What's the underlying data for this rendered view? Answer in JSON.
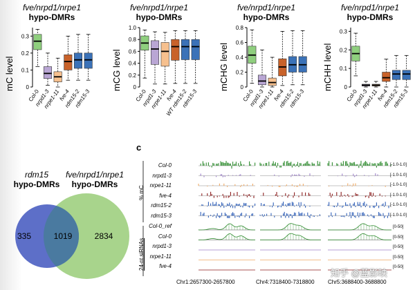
{
  "panels_b": [
    {
      "title_italic": "fve/nrpd1/nrpe1",
      "title_bold": "hypo-DMRs",
      "ylabel": "mC level",
      "yticks": [
        "0.3",
        "0.2",
        "0.1",
        "0"
      ],
      "ylim": [
        0,
        0.35
      ],
      "labels": [
        "Col-0",
        "nrpd1-3",
        "nrpe1-11",
        "fve-4",
        "rdm15-2",
        "rdm15-3"
      ],
      "box": [
        {
          "med": 0.27,
          "q1": 0.22,
          "q3": 0.31,
          "lo": 0.12,
          "hi": 0.34
        },
        {
          "med": 0.08,
          "q1": 0.05,
          "q3": 0.12,
          "lo": 0.01,
          "hi": 0.2
        },
        {
          "med": 0.06,
          "q1": 0.03,
          "q3": 0.09,
          "lo": 0.0,
          "hi": 0.17
        },
        {
          "med": 0.15,
          "q1": 0.1,
          "q3": 0.19,
          "lo": 0.04,
          "hi": 0.3
        },
        {
          "med": 0.16,
          "q1": 0.11,
          "q3": 0.2,
          "lo": 0.04,
          "hi": 0.31
        },
        {
          "med": 0.16,
          "q1": 0.11,
          "q3": 0.2,
          "lo": 0.04,
          "hi": 0.31
        }
      ]
    },
    {
      "title_italic": "fve/nrpd1/nrpe1",
      "title_bold": "hypo-DMRs",
      "ylabel": "mCG level",
      "yticks": [
        "1.0",
        "0.8",
        "0.6",
        "0.4",
        "0.2",
        "0"
      ],
      "ylim": [
        0,
        1.0
      ],
      "labels": [
        "Col-0",
        "nrpd1-3",
        "nrpe1-11",
        "fve-4",
        "WT rdm15-2",
        "rdm15-3"
      ],
      "box": [
        {
          "med": 0.74,
          "q1": 0.62,
          "q3": 0.86,
          "lo": 0.15,
          "hi": 0.96
        },
        {
          "med": 0.64,
          "q1": 0.38,
          "q3": 0.78,
          "lo": 0.05,
          "hi": 0.93
        },
        {
          "med": 0.6,
          "q1": 0.35,
          "q3": 0.75,
          "lo": 0.05,
          "hi": 0.92
        },
        {
          "med": 0.68,
          "q1": 0.45,
          "q3": 0.8,
          "lo": 0.06,
          "hi": 0.95
        },
        {
          "med": 0.68,
          "q1": 0.46,
          "q3": 0.8,
          "lo": 0.06,
          "hi": 0.95
        },
        {
          "med": 0.68,
          "q1": 0.46,
          "q3": 0.8,
          "lo": 0.06,
          "hi": 0.95
        }
      ]
    },
    {
      "title_italic": "fve/nrpd1/nrpe1",
      "title_bold": "hypo-DMRs",
      "ylabel": "mCHG level",
      "yticks": [
        "0.8",
        "0.6",
        "0.4",
        "0.2",
        "0"
      ],
      "ylim": [
        0,
        0.8
      ],
      "labels": [
        "Col-0",
        "nrpd1-3",
        "nrpe1-11",
        "fve-4",
        "rdm15-2",
        "rdm15-3"
      ],
      "box": [
        {
          "med": 0.43,
          "q1": 0.32,
          "q3": 0.55,
          "lo": 0.05,
          "hi": 0.77
        },
        {
          "med": 0.08,
          "q1": 0.03,
          "q3": 0.16,
          "lo": 0.0,
          "hi": 0.5
        },
        {
          "med": 0.06,
          "q1": 0.02,
          "q3": 0.12,
          "lo": 0.0,
          "hi": 0.4
        },
        {
          "med": 0.27,
          "q1": 0.15,
          "q3": 0.38,
          "lo": 0.02,
          "hi": 0.75
        },
        {
          "med": 0.3,
          "q1": 0.2,
          "q3": 0.41,
          "lo": 0.03,
          "hi": 0.76
        },
        {
          "med": 0.3,
          "q1": 0.2,
          "q3": 0.41,
          "lo": 0.03,
          "hi": 0.76
        }
      ]
    },
    {
      "title_italic": "fve/nrpd1/nrpe1",
      "title_bold": "hypo-DMRs",
      "ylabel": "mCHH level",
      "yticks": [
        "0.3",
        "0.2",
        "0.1",
        "0"
      ],
      "ylim": [
        0,
        0.32
      ],
      "labels": [
        "Col-0",
        "nrpd1-3",
        "nrpe1-11",
        "fve-4",
        "rdm15-2",
        "rdm15-3"
      ],
      "box": [
        {
          "med": 0.18,
          "q1": 0.14,
          "q3": 0.22,
          "lo": 0.06,
          "hi": 0.29
        },
        {
          "med": 0.01,
          "q1": 0.005,
          "q3": 0.015,
          "lo": 0.0,
          "hi": 0.03
        },
        {
          "med": 0.01,
          "q1": 0.005,
          "q3": 0.015,
          "lo": 0.0,
          "hi": 0.03
        },
        {
          "med": 0.05,
          "q1": 0.03,
          "q3": 0.08,
          "lo": 0.0,
          "hi": 0.15
        },
        {
          "med": 0.07,
          "q1": 0.04,
          "q3": 0.09,
          "lo": 0.0,
          "hi": 0.17
        },
        {
          "med": 0.07,
          "q1": 0.04,
          "q3": 0.09,
          "lo": 0.0,
          "hi": 0.17
        }
      ]
    }
  ],
  "box_colors": [
    "#8fcf7e",
    "#b9a6d4",
    "#f6c08e",
    "#c8622a",
    "#3b72b8",
    "#3b72b8"
  ],
  "venn": {
    "title_left_italic": "rdm15",
    "title_left_bold": "hypo-DMRs",
    "title_right_italic": "fve/nrpd1/nrpe1",
    "title_right_bold": "hypo-DMRs",
    "left_only": "335",
    "overlap": "1019",
    "right_only": "2834",
    "left_color": "#5d6fc8",
    "right_color": "#a8d48c",
    "overlap_color": "#4a7aa0"
  },
  "browser": {
    "panel_label": "c",
    "group_mc_label": "% mC",
    "group_sirna_label": "24-nt siRNAs",
    "mc_tracks": [
      {
        "name": "Col-0",
        "color": "#2e8b2e",
        "range": "[-1.0-1.0]"
      },
      {
        "name": "nrpd1-3",
        "color": "#9b7fc8",
        "range": "[-1.0-1.0]"
      },
      {
        "name": "nrpe1-11",
        "color": "#f0a860",
        "range": "[-1.0-1.0]"
      },
      {
        "name": "fve-4",
        "color": "#8b1a1a",
        "range": "[-1.0-1.0]"
      },
      {
        "name": "rdm15-2",
        "color": "#2f5fb8",
        "range": "[-1.0-1.0]"
      },
      {
        "name": "rdm15-3",
        "color": "#2f5fb8",
        "range": "[-1.0-1.0]"
      }
    ],
    "srna_tracks": [
      {
        "name": "Col-0_ref",
        "color": "#2e8b2e",
        "range": "[0-50]"
      },
      {
        "name": "Col-0",
        "color": "#2e8b2e",
        "range": "[0-50]"
      },
      {
        "name": "nrpd1-3",
        "color": "#9b7fc8",
        "range": "[0-50]"
      },
      {
        "name": "nrpe1-11",
        "color": "#f0a860",
        "range": "[0-50]"
      },
      {
        "name": "fve-4",
        "color": "#8b1a1a",
        "range": "[0-50]"
      }
    ],
    "coords": [
      "Chr1:2657300-2657800",
      "Chr4:7318400-7318800",
      "Chr5:3688400-3688800"
    ]
  },
  "watermark_text": "知乎 @蓝影映"
}
